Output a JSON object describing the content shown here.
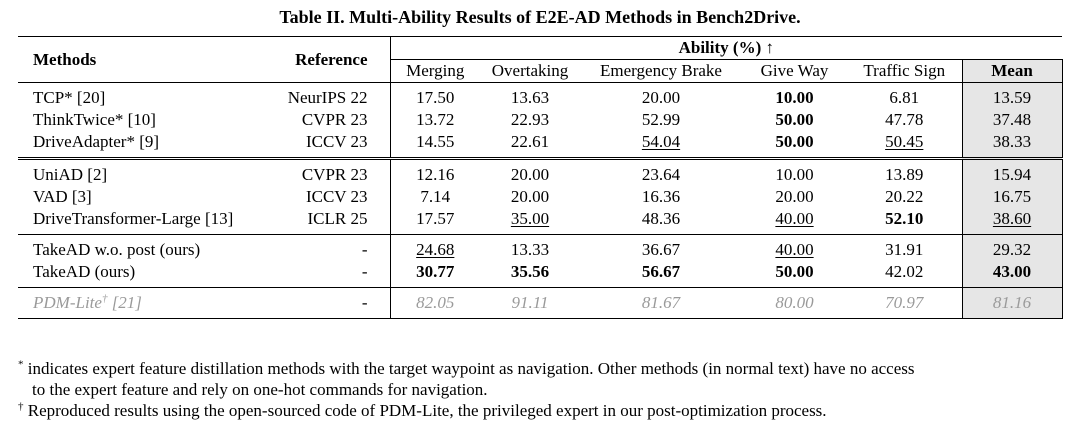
{
  "caption": "Table II. Multi-Ability Results of E2E-AD Methods in Bench2Drive.",
  "headers": {
    "methods": "Methods",
    "reference": "Reference",
    "ability": "Ability (%) ↑",
    "merging": "Merging",
    "overtaking": "Overtaking",
    "emergency": "Emergency Brake",
    "giveway": "Give Way",
    "traffic": "Traffic Sign",
    "mean": "Mean"
  },
  "groups": [
    [
      {
        "method": "TCP* [20]",
        "ref": "NeurIPS 22",
        "vals": [
          "17.50",
          "13.63",
          "20.00",
          "10.00",
          "6.81",
          "13.59"
        ]
      },
      {
        "method": "ThinkTwice* [10]",
        "ref": "CVPR 23",
        "vals": [
          "13.72",
          "22.93",
          "52.99",
          "50.00",
          "47.78",
          "37.48"
        ]
      },
      {
        "method": "DriveAdapter* [9]",
        "ref": "ICCV 23",
        "vals": [
          "14.55",
          "22.61",
          "54.04",
          "50.00",
          "50.45",
          "38.33"
        ]
      }
    ],
    [
      {
        "method": "UniAD [2]",
        "ref": "CVPR 23",
        "vals": [
          "12.16",
          "20.00",
          "23.64",
          "10.00",
          "13.89",
          "15.94"
        ]
      },
      {
        "method": "VAD [3]",
        "ref": "ICCV 23",
        "vals": [
          "7.14",
          "20.00",
          "16.36",
          "20.00",
          "20.22",
          "16.75"
        ]
      },
      {
        "method": "DriveTransformer-Large [13]",
        "ref": "ICLR 25",
        "vals": [
          "17.57",
          "35.00",
          "48.36",
          "40.00",
          "52.10",
          "38.60"
        ]
      }
    ],
    [
      {
        "method": "TakeAD w.o. post (ours)",
        "ref": "-",
        "vals": [
          "24.68",
          "13.33",
          "36.67",
          "40.00",
          "31.91",
          "29.32"
        ]
      },
      {
        "method": "TakeAD (ours)",
        "ref": "-",
        "vals": [
          "30.77",
          "35.56",
          "56.67",
          "50.00",
          "42.02",
          "43.00"
        ]
      }
    ],
    [
      {
        "method": "PDM-Lite",
        "method_mark": "†",
        "method_cite": " [21]",
        "ref": "-",
        "vals": [
          "82.05",
          "91.11",
          "81.67",
          "80.00",
          "70.97",
          "81.16"
        ]
      }
    ]
  ],
  "notes": {
    "n1_mark": "*",
    "n1_line1": "indicates expert feature distillation methods with the target waypoint as navigation. Other methods (in normal text) have no access",
    "n1_line2": "to the expert feature and rely on one-hot commands for navigation.",
    "n2_mark": "†",
    "n2_text": "Reproduced results using the open-sourced code of PDM-Lite, the privileged expert in our post-optimization process."
  }
}
